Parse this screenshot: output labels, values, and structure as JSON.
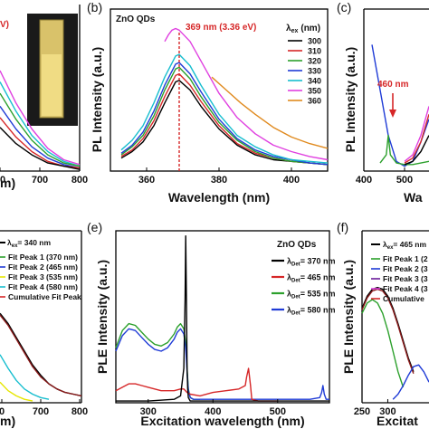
{
  "colors": {
    "black": "#000000",
    "red": "#d62728",
    "green": "#2ca02c",
    "blue": "#1f3bd6",
    "magenta": "#e040e0",
    "teal": "#17becf",
    "orange": "#e08a1e",
    "purple": "#6a1b9a",
    "darkred": "#8b1a1a",
    "yellow": "#e6e600"
  },
  "chart_data": [
    {
      "panel": "a",
      "type": "line",
      "label": "",
      "annotation": "V)",
      "x_ticks": [
        "00",
        "700",
        "800"
      ],
      "xlabel": "m)",
      "xlim": [
        600,
        800
      ],
      "series": [
        {
          "color": "#e040e0",
          "x": [
            600,
            640,
            680,
            720,
            760,
            800
          ],
          "y": [
            0.62,
            0.42,
            0.26,
            0.14,
            0.07,
            0.04
          ]
        },
        {
          "color": "#17becf",
          "x": [
            600,
            640,
            680,
            720,
            760,
            800
          ],
          "y": [
            0.55,
            0.37,
            0.22,
            0.12,
            0.06,
            0.03
          ]
        },
        {
          "color": "#2ca02c",
          "x": [
            600,
            640,
            680,
            720,
            760,
            800
          ],
          "y": [
            0.48,
            0.32,
            0.19,
            0.1,
            0.05,
            0.03
          ]
        },
        {
          "color": "#1f3bd6",
          "x": [
            600,
            640,
            680,
            720,
            760,
            800
          ],
          "y": [
            0.4,
            0.26,
            0.15,
            0.08,
            0.04,
            0.02
          ]
        },
        {
          "color": "#d62728",
          "x": [
            600,
            640,
            680,
            720,
            760,
            800
          ],
          "y": [
            0.33,
            0.21,
            0.12,
            0.06,
            0.03,
            0.02
          ]
        },
        {
          "color": "#000000",
          "x": [
            600,
            640,
            680,
            720,
            760,
            800
          ],
          "y": [
            0.27,
            0.17,
            0.1,
            0.05,
            0.03,
            0.01
          ]
        }
      ]
    },
    {
      "panel": "b",
      "type": "line",
      "label": "(b)",
      "inner_title": "ZnO QDs",
      "annotation": "369 nm (3.36 eV)",
      "marker_x": 369,
      "xlabel": "Wavelength (nm)",
      "ylabel": "PL Intensity (a.u.)",
      "xlim": [
        350,
        410
      ],
      "ylim": [
        0,
        1.0
      ],
      "x_ticks": [
        "360",
        "380",
        "400"
      ],
      "legend_title": "ex",
      "legend_title_prefix": "λ",
      "legend_unit": "(nm)",
      "series": [
        {
          "name": "300",
          "color": "#000000",
          "x": [
            353,
            356,
            359,
            362,
            365,
            368,
            369,
            372,
            375,
            380,
            385,
            390,
            395,
            400,
            405,
            410
          ],
          "y": [
            0.08,
            0.12,
            0.18,
            0.28,
            0.42,
            0.55,
            0.56,
            0.5,
            0.4,
            0.26,
            0.16,
            0.1,
            0.07,
            0.06,
            0.05,
            0.04
          ]
        },
        {
          "name": "310",
          "color": "#d62728",
          "x": [
            353,
            356,
            359,
            362,
            365,
            368,
            369,
            372,
            375,
            380,
            385,
            390,
            395,
            400,
            405,
            410
          ],
          "y": [
            0.09,
            0.13,
            0.2,
            0.31,
            0.46,
            0.59,
            0.6,
            0.53,
            0.43,
            0.28,
            0.17,
            0.11,
            0.08,
            0.06,
            0.05,
            0.04
          ]
        },
        {
          "name": "320",
          "color": "#2ca02c",
          "x": [
            353,
            356,
            359,
            362,
            365,
            368,
            369,
            372,
            375,
            380,
            385,
            390,
            395,
            400,
            405,
            410
          ],
          "y": [
            0.1,
            0.15,
            0.22,
            0.34,
            0.5,
            0.63,
            0.64,
            0.57,
            0.46,
            0.3,
            0.19,
            0.12,
            0.08,
            0.06,
            0.05,
            0.04
          ]
        },
        {
          "name": "330",
          "color": "#1f3bd6",
          "x": [
            353,
            356,
            359,
            362,
            365,
            368,
            369,
            372,
            375,
            380,
            385,
            390,
            395,
            400,
            405,
            410
          ],
          "y": [
            0.11,
            0.16,
            0.24,
            0.37,
            0.53,
            0.66,
            0.67,
            0.6,
            0.49,
            0.32,
            0.2,
            0.13,
            0.09,
            0.07,
            0.05,
            0.04
          ]
        },
        {
          "name": "340",
          "color": "#17becf",
          "x": [
            353,
            356,
            359,
            362,
            365,
            368,
            369,
            372,
            375,
            380,
            385,
            390,
            395,
            400,
            405,
            410
          ],
          "y": [
            0.13,
            0.19,
            0.28,
            0.42,
            0.58,
            0.71,
            0.72,
            0.65,
            0.53,
            0.35,
            0.22,
            0.15,
            0.1,
            0.07,
            0.06,
            0.05
          ]
        },
        {
          "name": "350",
          "color": "#e040e0",
          "x": [
            365,
            366,
            367,
            368,
            369,
            372,
            375,
            380,
            385,
            390,
            395,
            400,
            405,
            410
          ],
          "y": [
            0.8,
            0.84,
            0.87,
            0.88,
            0.87,
            0.8,
            0.68,
            0.48,
            0.33,
            0.23,
            0.16,
            0.12,
            0.09,
            0.07
          ]
        },
        {
          "name": "360",
          "color": "#e08a1e",
          "x": [
            378,
            382,
            386,
            390,
            395,
            400,
            405,
            410
          ],
          "y": [
            0.58,
            0.5,
            0.42,
            0.35,
            0.27,
            0.21,
            0.17,
            0.14
          ]
        }
      ]
    },
    {
      "panel": "c",
      "type": "line",
      "label": "(c)",
      "annotation": "460 nm",
      "xlabel": "Wa",
      "ylabel": "PL Intensity (a.u.)",
      "xlim": [
        400,
        560
      ],
      "x_ticks": [
        "400",
        "500"
      ],
      "series": [
        {
          "color": "#1f3bd6",
          "x": [
            420,
            440,
            460,
            480,
            500,
            520,
            540,
            560
          ],
          "y": [
            0.78,
            0.5,
            0.22,
            0.06,
            0.03,
            0.06,
            0.18,
            0.32
          ]
        },
        {
          "color": "#2ca02c",
          "x": [
            440,
            455,
            460,
            465,
            480,
            500,
            520,
            540,
            560
          ],
          "y": [
            0.05,
            0.1,
            0.22,
            0.1,
            0.05,
            0.04,
            0.04,
            0.05,
            0.06
          ]
        },
        {
          "color": "#d62728",
          "x": [
            500,
            520,
            540,
            560
          ],
          "y": [
            0.05,
            0.08,
            0.18,
            0.35
          ]
        },
        {
          "color": "#000000",
          "x": [
            500,
            520,
            540,
            560
          ],
          "y": [
            0.04,
            0.06,
            0.12,
            0.22
          ]
        },
        {
          "color": "#e040e0",
          "x": [
            500,
            520,
            540,
            560
          ],
          "y": [
            0.06,
            0.1,
            0.22,
            0.4
          ]
        }
      ]
    },
    {
      "panel": "d",
      "type": "line",
      "label": "",
      "xlabel": "m)",
      "xlim": [
        600,
        800
      ],
      "x_ticks": [
        "0",
        "700",
        "800"
      ],
      "legend": {
        "excitation_prefix": "λ",
        "excitation_sub": "ex",
        "excitation_value": "= 340 nm",
        "entries": [
          "Fit Peak 1 (370 nm)",
          "Fit Peak 2 (465 nm)",
          "Fit Peak 3 (535 nm)",
          "Fit Peak 4 (580 nm)",
          "Cumulative Fit Peak"
        ],
        "entry_colors": [
          "#2ca02c",
          "#1f3bd6",
          "#e6e600",
          "#17becf",
          "#d62728"
        ]
      },
      "series": [
        {
          "color": "#000000",
          "x": [
            600,
            620,
            640,
            660,
            680,
            700,
            720,
            740,
            760,
            780,
            800
          ],
          "y": [
            0.52,
            0.46,
            0.38,
            0.3,
            0.22,
            0.16,
            0.11,
            0.08,
            0.06,
            0.05,
            0.04
          ]
        },
        {
          "color": "#8b1a1a",
          "x": [
            600,
            620,
            640,
            660,
            680,
            700,
            720,
            740,
            760,
            780,
            800
          ],
          "y": [
            0.51,
            0.45,
            0.37,
            0.29,
            0.21,
            0.15,
            0.11,
            0.08,
            0.06,
            0.05,
            0.04
          ]
        },
        {
          "color": "#17becf",
          "x": [
            600,
            620,
            640,
            660,
            680,
            700,
            720
          ],
          "y": [
            0.28,
            0.2,
            0.13,
            0.08,
            0.05,
            0.03,
            0.02
          ]
        },
        {
          "color": "#e6e600",
          "x": [
            600,
            620,
            640,
            660,
            680
          ],
          "y": [
            0.12,
            0.07,
            0.04,
            0.02,
            0.01
          ]
        }
      ]
    },
    {
      "panel": "e",
      "type": "line",
      "label": "(e)",
      "inner_title": "ZnO QDs",
      "xlabel": "Excitation wavelength (nm)",
      "ylabel": "PLE Intensity (a.u.)",
      "xlim": [
        250,
        580
      ],
      "ylim": [
        0,
        1.0
      ],
      "x_ticks": [
        "300",
        "400",
        "500"
      ],
      "legend": [
        {
          "prefix": "λ",
          "sub": "Det",
          "value": "= 370 nm",
          "color": "#000000"
        },
        {
          "prefix": "λ",
          "sub": "Det",
          "value": "= 465 nm",
          "color": "#d62728"
        },
        {
          "prefix": "λ",
          "sub": "Det",
          "value": "= 535 nm",
          "color": "#2ca02c"
        },
        {
          "prefix": "λ",
          "sub": "Det",
          "value": "= 580 nm",
          "color": "#1f3bd6"
        }
      ],
      "series": [
        {
          "color": "#2ca02c",
          "x": [
            250,
            260,
            270,
            280,
            290,
            300,
            310,
            320,
            330,
            340,
            345,
            350,
            355,
            358,
            360,
            362,
            365,
            370,
            380
          ],
          "y": [
            0.32,
            0.42,
            0.46,
            0.45,
            0.41,
            0.37,
            0.34,
            0.33,
            0.35,
            0.4,
            0.44,
            0.46,
            0.43,
            0.35,
            0.2,
            0.08,
            0.03,
            0.02,
            0.02
          ]
        },
        {
          "color": "#1f3bd6",
          "x": [
            250,
            260,
            270,
            280,
            290,
            300,
            310,
            320,
            330,
            340,
            345,
            350,
            355,
            358,
            360,
            362,
            365,
            370,
            380,
            400,
            450,
            500,
            550,
            565,
            568,
            570,
            572,
            575,
            580
          ],
          "y": [
            0.3,
            0.39,
            0.43,
            0.42,
            0.38,
            0.34,
            0.31,
            0.3,
            0.32,
            0.37,
            0.41,
            0.43,
            0.4,
            0.32,
            0.18,
            0.07,
            0.03,
            0.02,
            0.02,
            0.02,
            0.02,
            0.02,
            0.02,
            0.03,
            0.06,
            0.1,
            0.05,
            0.02,
            0.02
          ]
        },
        {
          "color": "#d62728",
          "x": [
            250,
            260,
            270,
            280,
            290,
            300,
            310,
            320,
            330,
            340,
            350,
            355,
            360,
            365,
            380,
            400,
            420,
            440,
            450,
            452,
            455,
            458,
            460,
            470,
            500
          ],
          "y": [
            0.07,
            0.09,
            0.11,
            0.11,
            0.1,
            0.09,
            0.08,
            0.07,
            0.07,
            0.07,
            0.08,
            0.08,
            0.06,
            0.05,
            0.04,
            0.06,
            0.07,
            0.08,
            0.1,
            0.15,
            0.2,
            0.1,
            0.02,
            0.01,
            0.01
          ]
        },
        {
          "color": "#000000",
          "x": [
            250,
            300,
            340,
            350,
            355,
            357,
            358,
            359,
            360,
            361,
            362,
            365,
            370,
            400,
            580
          ],
          "y": [
            0.01,
            0.01,
            0.02,
            0.04,
            0.2,
            0.6,
            0.97,
            0.6,
            0.2,
            0.08,
            0.03,
            0.01,
            0.01,
            0.01,
            0.01
          ]
        }
      ]
    },
    {
      "panel": "f",
      "type": "line",
      "label": "(f)",
      "xlabel": "Excitat",
      "ylabel": "PLE Intensity (a.u.)",
      "xlim": [
        250,
        380
      ],
      "x_ticks": [
        "250",
        "300"
      ],
      "legend": {
        "excitation_prefix": "λ",
        "excitation_sub": "ex",
        "excitation_value": "= 465 nm",
        "entries": [
          "Fit Peak 1 (2",
          "Fit Peak 2 (3",
          "Fit Peak 3 (3",
          "Fit Peak 4 (3",
          "Cumulative"
        ],
        "entry_colors": [
          "#2ca02c",
          "#1f3bd6",
          "#6a1b9a",
          "#e040e0",
          "#d62728"
        ]
      },
      "series": [
        {
          "color": "#000000",
          "x": [
            250,
            260,
            270,
            280,
            290,
            300,
            310,
            320,
            330,
            340,
            350
          ],
          "y": [
            0.55,
            0.62,
            0.66,
            0.67,
            0.66,
            0.62,
            0.55,
            0.46,
            0.36,
            0.26,
            0.18
          ]
        },
        {
          "color": "#8b1a1a",
          "x": [
            250,
            260,
            270,
            280,
            290,
            300,
            310,
            320,
            330,
            340,
            350
          ],
          "y": [
            0.54,
            0.61,
            0.65,
            0.66,
            0.65,
            0.61,
            0.54,
            0.45,
            0.35,
            0.25,
            0.17
          ]
        },
        {
          "color": "#2ca02c",
          "x": [
            250,
            260,
            270,
            280,
            290,
            300,
            310,
            320,
            330
          ],
          "y": [
            0.52,
            0.58,
            0.6,
            0.58,
            0.52,
            0.42,
            0.3,
            0.18,
            0.09
          ]
        },
        {
          "color": "#1f3bd6",
          "x": [
            310,
            320,
            330,
            340,
            350,
            360,
            370,
            380
          ],
          "y": [
            0.02,
            0.05,
            0.1,
            0.16,
            0.21,
            0.22,
            0.18,
            0.12
          ]
        }
      ]
    }
  ]
}
